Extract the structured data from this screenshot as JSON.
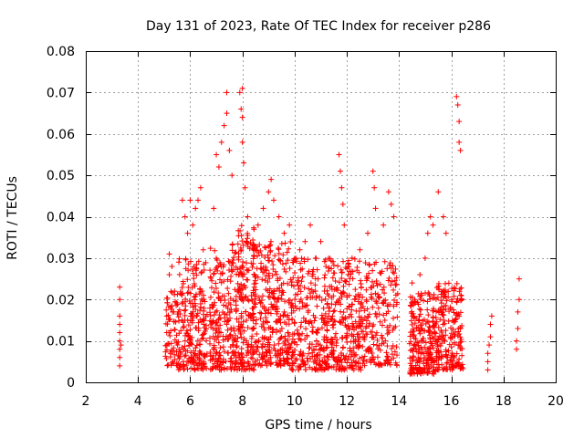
{
  "chart_data": {
    "type": "scatter",
    "title": "Day 131 of 2023, Rate Of TEC Index for receiver p286",
    "xlabel": "GPS time / hours",
    "ylabel": "ROTI / TECUs",
    "xlim": [
      2,
      20
    ],
    "ylim": [
      0,
      0.08
    ],
    "x_ticks": [
      "2",
      "4",
      "6",
      "8",
      "10",
      "12",
      "14",
      "16",
      "18",
      "20"
    ],
    "y_ticks": [
      "0",
      "0.01",
      "0.02",
      "0.03",
      "0.04",
      "0.05",
      "0.06",
      "0.07",
      "0.08"
    ],
    "grid": true,
    "marker": "+",
    "color": "#ff0000",
    "series": [
      {
        "points": [
          [
            3.3,
            0.004
          ],
          [
            3.3,
            0.006
          ],
          [
            3.3,
            0.008
          ],
          [
            3.3,
            0.01
          ],
          [
            3.3,
            0.012
          ],
          [
            3.3,
            0.014
          ],
          [
            3.3,
            0.016
          ],
          [
            3.3,
            0.02
          ],
          [
            3.3,
            0.023
          ],
          [
            3.35,
            0.009
          ],
          [
            5.1,
            0.009
          ],
          [
            5.1,
            0.012
          ],
          [
            5.1,
            0.016
          ],
          [
            5.2,
            0.026
          ],
          [
            5.2,
            0.031
          ],
          [
            5.3,
            0.028
          ],
          [
            5.4,
            0.022
          ],
          [
            5.7,
            0.044
          ],
          [
            5.8,
            0.04
          ],
          [
            5.9,
            0.036
          ],
          [
            6.0,
            0.044
          ],
          [
            6.1,
            0.038
          ],
          [
            6.2,
            0.042
          ],
          [
            6.3,
            0.044
          ],
          [
            6.4,
            0.047
          ],
          [
            6.5,
            0.032
          ],
          [
            6.9,
            0.042
          ],
          [
            7.0,
            0.055
          ],
          [
            7.1,
            0.052
          ],
          [
            7.2,
            0.058
          ],
          [
            7.3,
            0.062
          ],
          [
            7.4,
            0.07
          ],
          [
            7.4,
            0.065
          ],
          [
            7.5,
            0.056
          ],
          [
            7.6,
            0.05
          ],
          [
            7.9,
            0.07
          ],
          [
            7.95,
            0.066
          ],
          [
            8.0,
            0.071
          ],
          [
            8.0,
            0.064
          ],
          [
            8.0,
            0.058
          ],
          [
            8.05,
            0.053
          ],
          [
            8.1,
            0.047
          ],
          [
            8.2,
            0.04
          ],
          [
            8.6,
            0.038
          ],
          [
            8.8,
            0.042
          ],
          [
            9.0,
            0.046
          ],
          [
            9.1,
            0.049
          ],
          [
            9.2,
            0.044
          ],
          [
            9.4,
            0.04
          ],
          [
            9.6,
            0.036
          ],
          [
            9.8,
            0.038
          ],
          [
            10.2,
            0.032
          ],
          [
            10.4,
            0.034
          ],
          [
            10.6,
            0.038
          ],
          [
            10.8,
            0.03
          ],
          [
            11.0,
            0.034
          ],
          [
            11.2,
            0.028
          ],
          [
            11.7,
            0.055
          ],
          [
            11.75,
            0.051
          ],
          [
            11.8,
            0.047
          ],
          [
            11.85,
            0.043
          ],
          [
            11.9,
            0.038
          ],
          [
            12.2,
            0.03
          ],
          [
            12.5,
            0.032
          ],
          [
            12.8,
            0.036
          ],
          [
            13.0,
            0.051
          ],
          [
            13.05,
            0.047
          ],
          [
            13.1,
            0.042
          ],
          [
            13.4,
            0.038
          ],
          [
            13.6,
            0.046
          ],
          [
            13.7,
            0.043
          ],
          [
            13.8,
            0.04
          ],
          [
            14.5,
            0.024
          ],
          [
            14.6,
            0.02
          ],
          [
            14.8,
            0.026
          ],
          [
            15.0,
            0.03
          ],
          [
            15.1,
            0.036
          ],
          [
            15.2,
            0.04
          ],
          [
            15.3,
            0.038
          ],
          [
            15.5,
            0.046
          ],
          [
            15.7,
            0.04
          ],
          [
            15.8,
            0.036
          ],
          [
            16.2,
            0.069
          ],
          [
            16.25,
            0.067
          ],
          [
            16.3,
            0.063
          ],
          [
            16.3,
            0.058
          ],
          [
            16.35,
            0.056
          ],
          [
            16.4,
            0.02
          ],
          [
            17.4,
            0.003
          ],
          [
            17.4,
            0.005
          ],
          [
            17.4,
            0.007
          ],
          [
            17.45,
            0.009
          ],
          [
            17.5,
            0.011
          ],
          [
            17.5,
            0.014
          ],
          [
            17.55,
            0.016
          ],
          [
            18.5,
            0.008
          ],
          [
            18.5,
            0.01
          ],
          [
            18.55,
            0.013
          ],
          [
            18.55,
            0.017
          ],
          [
            18.6,
            0.02
          ],
          [
            18.6,
            0.025
          ]
        ]
      }
    ],
    "clusters": [
      [
        5.05,
        5.55,
        0.004,
        0.022,
        70
      ],
      [
        5.55,
        6.65,
        0.003,
        0.03,
        230
      ],
      [
        6.75,
        7.75,
        0.003,
        0.034,
        220
      ],
      [
        7.75,
        8.45,
        0.003,
        0.038,
        200
      ],
      [
        8.45,
        9.85,
        0.004,
        0.034,
        300
      ],
      [
        9.85,
        11.45,
        0.003,
        0.03,
        300
      ],
      [
        11.45,
        12.55,
        0.003,
        0.03,
        220
      ],
      [
        12.55,
        13.95,
        0.004,
        0.03,
        200
      ],
      [
        14.4,
        15.45,
        0.002,
        0.022,
        240
      ],
      [
        15.45,
        16.45,
        0.003,
        0.024,
        200
      ]
    ]
  }
}
